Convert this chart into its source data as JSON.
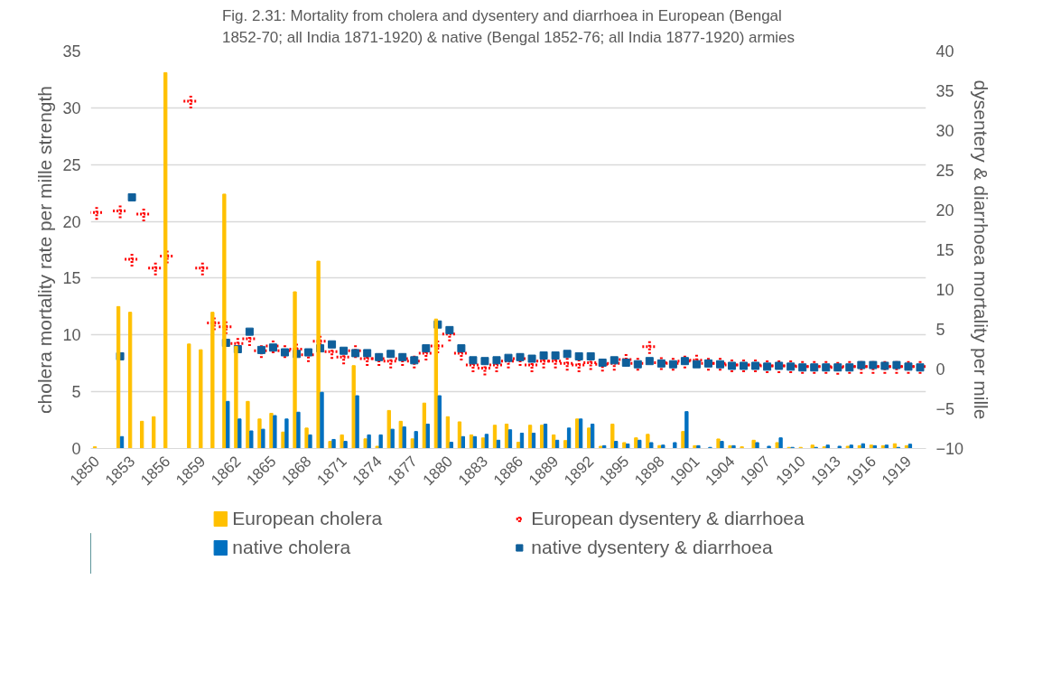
{
  "chart_data": {
    "type": "bar",
    "title": "Fig. 2.31: Mortality from cholera and dysentery and diarrhoea in European (Bengal 1852-70; all India 1871-1920) & native (Bengal 1852-76; all India 1877-1920) armies",
    "ylabel": "cholera mortality rate per mille strength",
    "y2label": "dysentery & diarrhoea mortality per mille",
    "categories": [
      "1850",
      null,
      null,
      "1853",
      null,
      null,
      "1856",
      null,
      null,
      "1859",
      null,
      null,
      "1862",
      null,
      null,
      "1865",
      null,
      null,
      "1868",
      null,
      null,
      "1871",
      null,
      null,
      "1874",
      null,
      null,
      "1877",
      null,
      null,
      "1880",
      null,
      null,
      "1883",
      null,
      null,
      "1886",
      null,
      null,
      "1889",
      null,
      null,
      "1892",
      null,
      null,
      "1895",
      null,
      null,
      "1898",
      null,
      null,
      "1901",
      null,
      null,
      "1904",
      null,
      null,
      "1907",
      null,
      null,
      "1910",
      null,
      null,
      "1913",
      null,
      null,
      "1916",
      null,
      null,
      "1919",
      null
    ],
    "ylim": [
      0,
      35
    ],
    "yticks": [
      0,
      5,
      10,
      15,
      20,
      25,
      30,
      35
    ],
    "y2lim": [
      -10,
      40
    ],
    "y2ticks": [
      -10,
      -5,
      0,
      5,
      10,
      15,
      20,
      25,
      30,
      35,
      40
    ],
    "grid": "y",
    "legend": "bottom",
    "series": [
      {
        "name": "European cholera",
        "color": "#ffc000",
        "values": [
          0.15,
          null,
          12.5,
          12.0,
          2.4,
          2.8,
          33.1,
          null,
          9.2,
          8.7,
          12.0,
          22.4,
          9.0,
          4.15,
          2.6,
          3.1,
          1.45,
          13.8,
          1.8,
          16.5,
          0.63,
          1.2,
          7.3,
          0.85,
          0.2,
          3.35,
          2.4,
          0.85,
          4.0,
          11.4,
          2.8,
          2.35,
          1.2,
          0.93,
          2.05,
          2.15,
          0.55,
          2.05,
          2.05,
          1.2,
          0.7,
          2.6,
          1.8,
          0.2,
          2.15,
          0.52,
          0.94,
          1.25,
          0.26,
          null,
          1.5,
          0.25,
          null,
          0.84,
          0.25,
          0.15,
          0.73,
          null,
          0.52,
          0.1,
          0.1,
          0.3,
          0.15,
          null,
          0.2,
          0.25,
          0.3,
          0.25,
          0.42,
          0.25,
          null
        ]
      },
      {
        "name": "native cholera",
        "color": "#0070c0",
        "values": [
          null,
          null,
          1.05,
          null,
          null,
          null,
          null,
          null,
          null,
          null,
          null,
          4.15,
          2.6,
          1.55,
          1.7,
          2.9,
          2.6,
          3.2,
          1.2,
          4.95,
          0.8,
          0.63,
          4.65,
          1.2,
          1.2,
          1.7,
          1.9,
          1.5,
          2.15,
          4.65,
          0.55,
          1.05,
          1.05,
          1.25,
          0.73,
          1.65,
          1.35,
          1.35,
          2.15,
          0.73,
          1.8,
          2.6,
          2.15,
          0.25,
          0.63,
          0.4,
          0.73,
          0.52,
          0.3,
          0.52,
          3.25,
          0.25,
          0.1,
          0.63,
          0.25,
          null,
          0.52,
          0.2,
          0.94,
          0.1,
          null,
          0.1,
          0.3,
          0.2,
          0.3,
          0.42,
          0.25,
          0.3,
          0.1,
          0.38,
          null
        ]
      },
      {
        "name": "European dysentery & diarrhoea",
        "type": "scatter",
        "axis": "y2",
        "marker": "cross",
        "color": "#ff0000",
        "values": [
          19.7,
          null,
          19.9,
          13.8,
          19.5,
          12.7,
          14.2,
          null,
          33.7,
          12.7,
          5.8,
          5.3,
          3.2,
          3.8,
          2.3,
          2.9,
          2.3,
          2.5,
          1.8,
          3.5,
          2.2,
          1.5,
          2.3,
          1.3,
          1.3,
          1.0,
          1.3,
          1.0,
          2.0,
          2.9,
          4.4,
          2.0,
          0.5,
          0.1,
          0.5,
          1.0,
          1.3,
          0.5,
          1.0,
          1.0,
          0.7,
          0.5,
          0.8,
          0.6,
          0.7,
          1.2,
          0.7,
          2.8,
          0.8,
          0.7,
          1.0,
          1.1,
          0.7,
          0.7,
          0.5,
          0.5,
          0.5,
          0.4,
          0.4,
          0.4,
          0.3,
          0.3,
          0.3,
          0.2,
          0.3,
          0.3,
          0.3,
          0.3,
          0.3,
          0.3,
          0.3
        ]
      },
      {
        "name": "native dysentery & diarrhoea",
        "type": "scatter",
        "axis": "y2",
        "marker": "square",
        "color": "#0f5f9a",
        "values": [
          null,
          null,
          1.6,
          21.6,
          null,
          null,
          null,
          null,
          null,
          null,
          null,
          3.3,
          2.5,
          4.7,
          2.4,
          2.7,
          2.1,
          1.9,
          2.1,
          2.6,
          3.1,
          2.3,
          2.0,
          2.0,
          1.5,
          1.9,
          1.5,
          1.1,
          2.6,
          5.6,
          4.9,
          2.6,
          1.1,
          1.0,
          1.1,
          1.4,
          1.5,
          1.3,
          1.7,
          1.7,
          1.9,
          1.6,
          1.6,
          0.8,
          1.1,
          0.8,
          0.6,
          1.0,
          0.7,
          0.6,
          1.0,
          0.6,
          0.7,
          0.6,
          0.4,
          0.4,
          0.4,
          0.3,
          0.4,
          0.3,
          0.2,
          0.2,
          0.2,
          0.2,
          0.2,
          0.5,
          0.5,
          0.4,
          0.5,
          0.3,
          0.2
        ]
      }
    ]
  }
}
